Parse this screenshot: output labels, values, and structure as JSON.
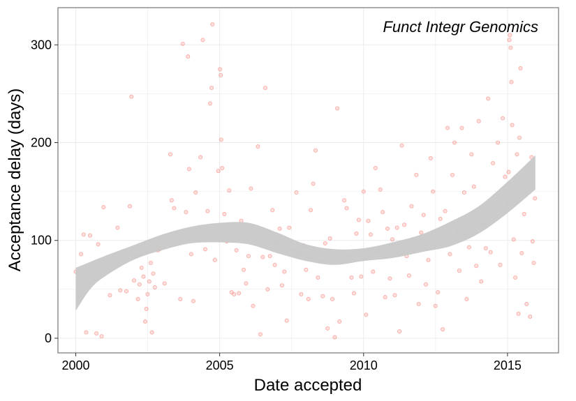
{
  "chart_data": {
    "type": "scatter",
    "title": "Funct Integr Genomics",
    "xlabel": "Date accepted",
    "ylabel": "Acceptance delay (days)",
    "x_is_date": true,
    "xlim": [
      "1999-05-20",
      "2016-10-10"
    ],
    "ylim": [
      -15,
      338
    ],
    "x_ticks": [
      {
        "value": "2000-01-01",
        "label": "2000"
      },
      {
        "value": "2005-01-01",
        "label": "2005"
      },
      {
        "value": "2010-01-01",
        "label": "2010"
      },
      {
        "value": "2015-01-01",
        "label": "2015"
      }
    ],
    "y_ticks": [
      0,
      100,
      200,
      300
    ],
    "grid": true,
    "colors": {
      "points": "#f8766d",
      "smooth_band": "#c8c8c8",
      "panel_border": "#7f7f7f",
      "grid": "#ebebeb"
    },
    "series": [
      {
        "values": [
          [
            "2000-01-01",
            68
          ],
          [
            "2000-02-05",
            51
          ],
          [
            "2000-03-08",
            86
          ],
          [
            "2000-04-10",
            106
          ],
          [
            "2000-05-12",
            6
          ],
          [
            "2000-07-01",
            105
          ],
          [
            "2000-08-15",
            72
          ],
          [
            "2000-09-20",
            5
          ],
          [
            "2000-10-12",
            96
          ],
          [
            "2000-11-25",
            2
          ],
          [
            "2000-12-20",
            134
          ],
          [
            "2001-03-10",
            44
          ],
          [
            "2001-06-15",
            113
          ],
          [
            "2001-07-20",
            49
          ],
          [
            "2001-10-05",
            48
          ],
          [
            "2001-11-18",
            135
          ],
          [
            "2001-12-08",
            247
          ],
          [
            "2002-01-10",
            59
          ],
          [
            "2002-02-14",
            84
          ],
          [
            "2002-03-01",
            40
          ],
          [
            "2002-03-20",
            55
          ],
          [
            "2002-04-15",
            72
          ],
          [
            "2002-05-10",
            63
          ],
          [
            "2002-06-01",
            17
          ],
          [
            "2002-06-15",
            30
          ],
          [
            "2002-07-01",
            45
          ],
          [
            "2002-07-22",
            58
          ],
          [
            "2002-08-10",
            77
          ],
          [
            "2002-08-25",
            6
          ],
          [
            "2002-09-10",
            66
          ],
          [
            "2002-10-01",
            52
          ],
          [
            "2002-11-05",
            90
          ],
          [
            "2002-12-01",
            91
          ],
          [
            "2003-02-01",
            56
          ],
          [
            "2003-04-15",
            188
          ],
          [
            "2003-05-01",
            141
          ],
          [
            "2003-06-01",
            133
          ],
          [
            "2003-08-20",
            40
          ],
          [
            "2003-09-20",
            301
          ],
          [
            "2003-11-01",
            129
          ],
          [
            "2003-11-25",
            288
          ],
          [
            "2003-12-10",
            173
          ],
          [
            "2004-01-05",
            86
          ],
          [
            "2004-02-01",
            38
          ],
          [
            "2004-03-01",
            149
          ],
          [
            "2004-04-01",
            112
          ],
          [
            "2004-05-01",
            185
          ],
          [
            "2004-06-01",
            305
          ],
          [
            "2004-07-01",
            91
          ],
          [
            "2004-08-01",
            130
          ],
          [
            "2004-09-01",
            240
          ],
          [
            "2004-09-20",
            256
          ],
          [
            "2004-10-01",
            321
          ],
          [
            "2004-11-01",
            80
          ],
          [
            "2004-12-15",
            171
          ],
          [
            "2005-01-05",
            275
          ],
          [
            "2005-01-15",
            269
          ],
          [
            "2005-01-20",
            203
          ],
          [
            "2005-02-01",
            174
          ],
          [
            "2005-03-01",
            127
          ],
          [
            "2005-04-01",
            99
          ],
          [
            "2005-05-01",
            151
          ],
          [
            "2005-06-01",
            47
          ],
          [
            "2005-07-01",
            45
          ],
          [
            "2005-08-01",
            90
          ],
          [
            "2005-09-01",
            46
          ],
          [
            "2005-10-01",
            120
          ],
          [
            "2005-11-01",
            70
          ],
          [
            "2005-12-01",
            56
          ],
          [
            "2006-01-01",
            84
          ],
          [
            "2006-02-01",
            153
          ],
          [
            "2006-03-01",
            33
          ],
          [
            "2006-05-01",
            196
          ],
          [
            "2006-06-01",
            4
          ],
          [
            "2006-07-01",
            83
          ],
          [
            "2006-08-01",
            256
          ],
          [
            "2006-09-01",
            50
          ],
          [
            "2006-10-01",
            84
          ],
          [
            "2006-11-01",
            131
          ],
          [
            "2006-12-01",
            75
          ],
          [
            "2007-01-01",
            97
          ],
          [
            "2007-02-01",
            112
          ],
          [
            "2007-03-01",
            54
          ],
          [
            "2007-04-01",
            68
          ],
          [
            "2007-05-01",
            18
          ],
          [
            "2007-06-01",
            113
          ],
          [
            "2007-08-01",
            90
          ],
          [
            "2007-09-01",
            149
          ],
          [
            "2007-10-01",
            86
          ],
          [
            "2007-11-01",
            45
          ],
          [
            "2007-12-01",
            95
          ],
          [
            "2008-01-01",
            70
          ],
          [
            "2008-02-01",
            40
          ],
          [
            "2008-03-01",
            131
          ],
          [
            "2008-04-01",
            158
          ],
          [
            "2008-05-01",
            192
          ],
          [
            "2008-06-01",
            62
          ],
          [
            "2008-07-01",
            79
          ],
          [
            "2008-08-01",
            43
          ],
          [
            "2008-09-01",
            97
          ],
          [
            "2008-10-01",
            10
          ],
          [
            "2008-11-01",
            102
          ],
          [
            "2008-12-01",
            40
          ],
          [
            "2009-01-01",
            1
          ],
          [
            "2009-02-01",
            235
          ],
          [
            "2009-03-01",
            17
          ],
          [
            "2009-04-01",
            83
          ],
          [
            "2009-05-01",
            141
          ],
          [
            "2009-06-01",
            133
          ],
          [
            "2009-07-01",
            85
          ],
          [
            "2009-08-01",
            62
          ],
          [
            "2009-09-01",
            46
          ],
          [
            "2009-10-01",
            107
          ],
          [
            "2009-11-01",
            121
          ],
          [
            "2009-12-01",
            63
          ],
          [
            "2010-01-01",
            150
          ],
          [
            "2010-02-01",
            24
          ],
          [
            "2010-03-01",
            120
          ],
          [
            "2010-04-01",
            106
          ],
          [
            "2010-05-01",
            68
          ],
          [
            "2010-06-01",
            174
          ],
          [
            "2010-07-01",
            89
          ],
          [
            "2010-08-01",
            152
          ],
          [
            "2010-09-01",
            129
          ],
          [
            "2010-10-01",
            42
          ],
          [
            "2010-11-01",
            112
          ],
          [
            "2010-12-01",
            61
          ],
          [
            "2011-01-01",
            101
          ],
          [
            "2011-02-01",
            44
          ],
          [
            "2011-03-01",
            113
          ],
          [
            "2011-04-01",
            7
          ],
          [
            "2011-05-01",
            197
          ],
          [
            "2011-06-01",
            116
          ],
          [
            "2011-07-01",
            84
          ],
          [
            "2011-08-01",
            64
          ],
          [
            "2011-09-01",
            135
          ],
          [
            "2011-10-01",
            90
          ],
          [
            "2011-11-01",
            167
          ],
          [
            "2011-12-01",
            35
          ],
          [
            "2012-01-01",
            108
          ],
          [
            "2012-02-01",
            126
          ],
          [
            "2012-03-01",
            55
          ],
          [
            "2012-04-01",
            80
          ],
          [
            "2012-05-01",
            184
          ],
          [
            "2012-06-01",
            150
          ],
          [
            "2012-07-01",
            33
          ],
          [
            "2012-08-01",
            47
          ],
          [
            "2012-09-01",
            122
          ],
          [
            "2012-10-01",
            9
          ],
          [
            "2012-11-01",
            130
          ],
          [
            "2012-12-01",
            215
          ],
          [
            "2013-01-01",
            86
          ],
          [
            "2013-02-01",
            167
          ],
          [
            "2013-03-01",
            200
          ],
          [
            "2013-04-01",
            109
          ],
          [
            "2013-05-01",
            69
          ],
          [
            "2013-06-01",
            215
          ],
          [
            "2013-07-01",
            149
          ],
          [
            "2013-08-01",
            40
          ],
          [
            "2013-09-01",
            93
          ],
          [
            "2013-10-01",
            188
          ],
          [
            "2013-11-01",
            155
          ],
          [
            "2013-12-01",
            74
          ],
          [
            "2014-01-01",
            222
          ],
          [
            "2014-02-01",
            58
          ],
          [
            "2014-03-01",
            116
          ],
          [
            "2014-04-01",
            92
          ],
          [
            "2014-05-01",
            245
          ],
          [
            "2014-06-01",
            88
          ],
          [
            "2014-07-01",
            179
          ],
          [
            "2014-08-01",
            135
          ],
          [
            "2014-09-01",
            200
          ],
          [
            "2014-10-01",
            75
          ],
          [
            "2014-11-01",
            225
          ],
          [
            "2014-12-01",
            165
          ],
          [
            "2015-01-01",
            137
          ],
          [
            "2015-01-15",
            170
          ],
          [
            "2015-01-25",
            305
          ],
          [
            "2015-02-01",
            310
          ],
          [
            "2015-02-10",
            297
          ],
          [
            "2015-02-20",
            262
          ],
          [
            "2015-03-01",
            218
          ],
          [
            "2015-03-20",
            101
          ],
          [
            "2015-04-10",
            62
          ],
          [
            "2015-05-01",
            188
          ],
          [
            "2015-05-20",
            25
          ],
          [
            "2015-06-01",
            205
          ],
          [
            "2015-06-15",
            276
          ],
          [
            "2015-07-01",
            87
          ],
          [
            "2015-08-01",
            127
          ],
          [
            "2015-09-01",
            35
          ],
          [
            "2015-10-01",
            170
          ],
          [
            "2015-10-15",
            22
          ],
          [
            "2015-11-01",
            185
          ],
          [
            "2015-11-15",
            99
          ],
          [
            "2015-12-01",
            77
          ],
          [
            "2015-12-15",
            143
          ]
        ]
      }
    ],
    "smooth_band": [
      {
        "x": "2000-01-01",
        "lower": 28,
        "upper": 72
      },
      {
        "x": "2000-07-01",
        "lower": 50,
        "upper": 78
      },
      {
        "x": "2001-01-01",
        "lower": 63,
        "upper": 84
      },
      {
        "x": "2002-01-01",
        "lower": 80,
        "upper": 95
      },
      {
        "x": "2003-01-01",
        "lower": 90,
        "upper": 106
      },
      {
        "x": "2004-01-01",
        "lower": 97,
        "upper": 114
      },
      {
        "x": "2005-01-01",
        "lower": 98,
        "upper": 118
      },
      {
        "x": "2006-01-01",
        "lower": 96,
        "upper": 118
      },
      {
        "x": "2007-01-01",
        "lower": 87,
        "upper": 108
      },
      {
        "x": "2008-01-01",
        "lower": 79,
        "upper": 96
      },
      {
        "x": "2009-01-01",
        "lower": 75,
        "upper": 91
      },
      {
        "x": "2010-01-01",
        "lower": 79,
        "upper": 92
      },
      {
        "x": "2011-01-01",
        "lower": 82,
        "upper": 98
      },
      {
        "x": "2012-01-01",
        "lower": 88,
        "upper": 106
      },
      {
        "x": "2013-01-01",
        "lower": 94,
        "upper": 119
      },
      {
        "x": "2014-01-01",
        "lower": 107,
        "upper": 135
      },
      {
        "x": "2015-01-01",
        "lower": 128,
        "upper": 160
      },
      {
        "x": "2015-12-20",
        "lower": 152,
        "upper": 187
      }
    ]
  }
}
